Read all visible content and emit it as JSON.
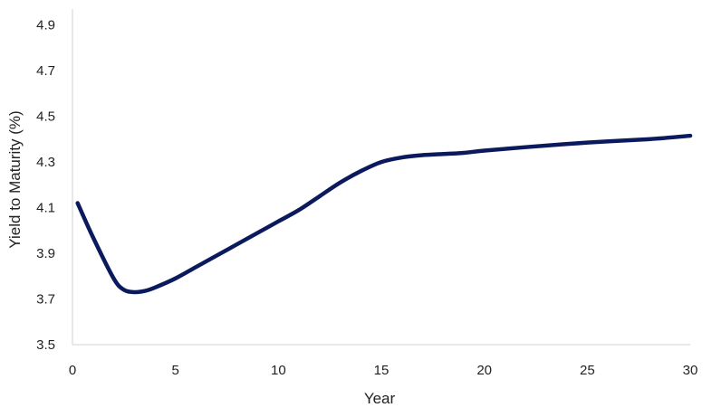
{
  "chart_data": {
    "type": "line",
    "title": "",
    "xlabel": "Year",
    "ylabel": "Yield to Maturity (%)",
    "xlim": [
      0,
      30
    ],
    "ylim": [
      3.5,
      4.97
    ],
    "xticks": [
      0,
      5,
      10,
      15,
      20,
      25,
      30
    ],
    "yticks": [
      3.5,
      3.7,
      3.9,
      4.1,
      4.3,
      4.5,
      4.7,
      4.9
    ],
    "grid": false,
    "legend": "none",
    "series": [
      {
        "color": "#0a1a5c",
        "x": [
          0.25,
          1,
          2,
          2.5,
          3,
          3.5,
          4,
          5,
          6,
          7,
          8,
          9,
          10,
          11,
          12,
          13,
          14,
          15,
          16,
          17,
          18,
          19,
          20,
          22,
          25,
          28,
          30
        ],
        "y": [
          4.12,
          3.97,
          3.79,
          3.74,
          3.73,
          3.735,
          3.75,
          3.79,
          3.84,
          3.89,
          3.94,
          3.99,
          4.04,
          4.09,
          4.15,
          4.21,
          4.26,
          4.3,
          4.32,
          4.33,
          4.335,
          4.34,
          4.35,
          4.365,
          4.385,
          4.4,
          4.415
        ]
      }
    ]
  }
}
